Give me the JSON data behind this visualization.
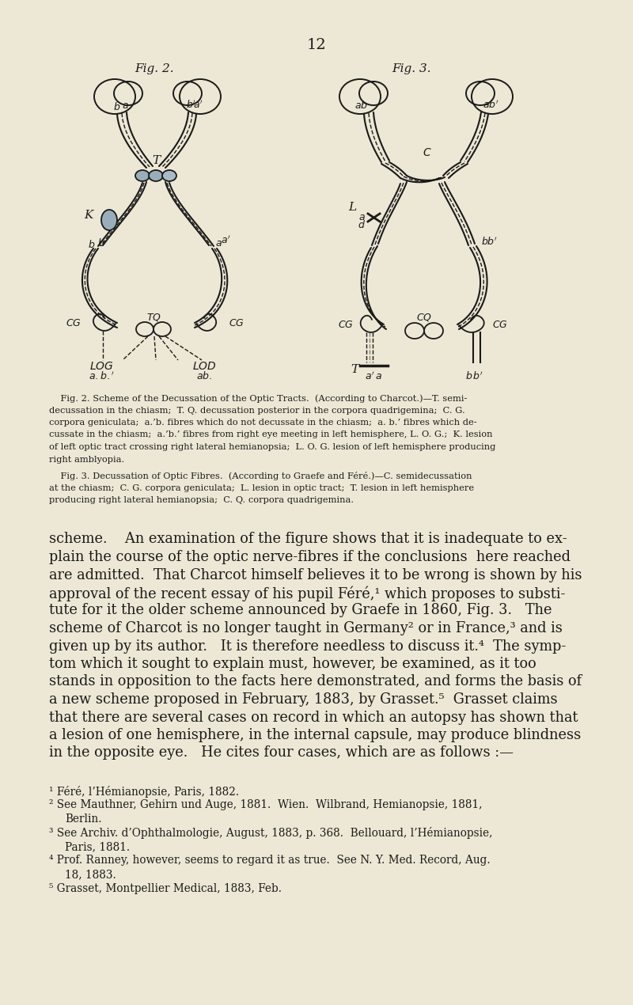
{
  "page_bg": "#ede8d5",
  "page_number": "12",
  "fig2_label": "Fig. 2.",
  "fig3_label": "Fig. 3.",
  "ink_color": "#1a1a1a",
  "line_color": "#1a1a1a",
  "caption_fig2_lines": [
    "    Fig. 2. Scheme of the Decussation of the Optic Tracts.  (According to Charcot.)—T. semi-",
    "decussation in the chiasm;  T. Q. decussation posterior in the corpora quadrigemina;  C. G.",
    "corpora geniculata;  a.’b. fibres which do not decussate in the chiasm;  a. b.’ fibres which de-",
    "cussate in the chiasm;  a.’b.’ fibres from right eye meeting in left hemisphere, L. O. G.;  K. lesion",
    "of left optic tract crossing right lateral hemianopsia;  L. O. G. lesion of left hemisphere producing",
    "right amblyopia."
  ],
  "caption_fig3_lines": [
    "    Fig. 3. Decussation of Optic Fibres.  (According to Graefe and Féré.)—C. semidecussation",
    "at the chiasm;  C. G. corpora geniculata;  L. lesion in optic tract;  T. lesion in left hemisphere",
    "producing right lateral hemianopsia;  C. Q. corpora quadrigemina."
  ],
  "body_lines": [
    "scheme.    An examination of the figure shows that it is inadequate to ex-",
    "plain the course of the optic nerve-fibres if the conclusions  here reached",
    "are admitted.  That Charcot himself believes it to be wrong is shown by his",
    "approval of the recent essay of his pupil Féré,¹ which proposes to substi-",
    "tute for it the older scheme announced by Graefe in 1860, Fig. 3.   The",
    "scheme of Charcot is no longer taught in Germany² or in France,³ and is",
    "given up by its author.   It is therefore needless to discuss it.⁴  The symp-",
    "tom which it sought to explain must, however, be examined, as it too",
    "stands in opposition to the facts here demonstrated, and forms the basis of",
    "a new scheme proposed in February, 1883, by Grasset.⁵  Grasset claims",
    "that there are several cases on record in which an autopsy has shown that",
    "a lesion of one hemisphere, in the internal capsule, may produce blindness",
    "in the opposite eye.   He cites four cases, which are as follows :—"
  ],
  "footnote_lines": [
    "¹ Féré, l’Hémianopsie, Paris, 1882.",
    "² See Mauthner, Gehirn und Auge, 1881.  Wien.  Wilbrand, Hemianopsie, 1881,",
    "Berlin.",
    "³ See Archiv. d’Ophthalmologie, August, 1883, p. 368.  Bellouard, l’Hémianopsie,",
    "Paris, 1881.",
    "⁴ Prof. Ranney, however, seems to regard it as true.  See N. Y. Med. Record, Aug.",
    "18, 1883.",
    "⁵ Grasset, Montpellier Medical, 1883, Feb."
  ]
}
